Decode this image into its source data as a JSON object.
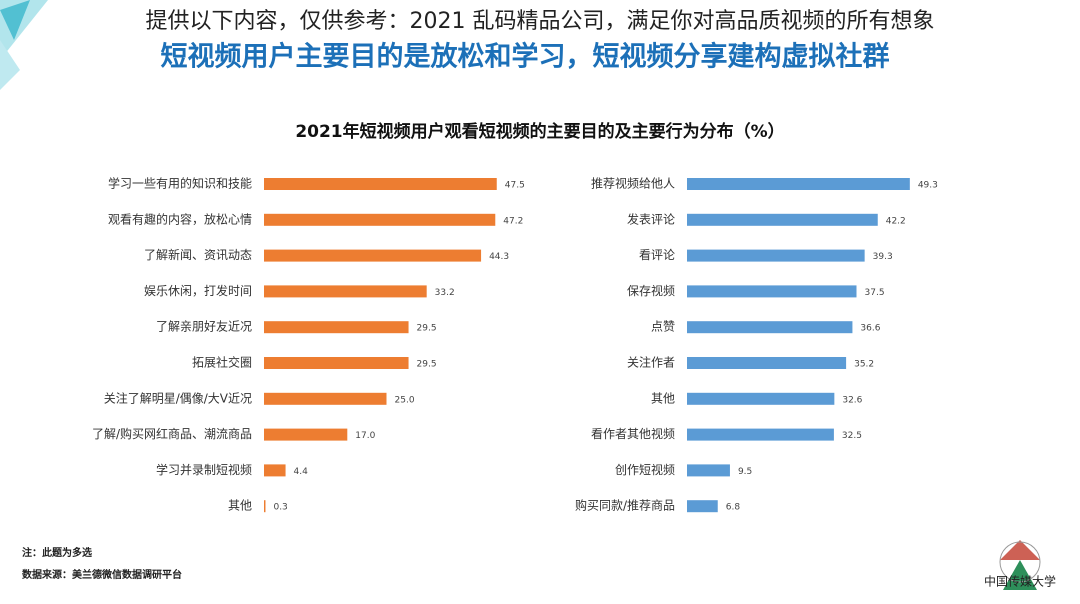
{
  "header": {
    "overlay": "提供以下内容，仅供参考：2021 乱码精品公司，满足你对高品质视频的所有想象",
    "headline": "短视频用户主要目的是放松和学习，短视频分享建构虚拟社群"
  },
  "figure_title": "2021年短视频用户观看短视频的主要目的及主要行为分布（%）",
  "chart_data": [
    {
      "type": "bar",
      "orientation": "horizontal",
      "color": "#ed7d31",
      "categories": [
        "学习一些有用的知识和技能",
        "观看有趣的内容，放松心情",
        "了解新闻、资讯动态",
        "娱乐休闲，打发时间",
        "了解亲朋好友近况",
        "拓展社交圈",
        "关注了解明星/偶像/大V近况",
        "了解/购买网红商品、潮流商品",
        "学习并录制短视频",
        "其他"
      ],
      "values": [
        47.5,
        47.2,
        44.3,
        33.2,
        29.5,
        29.5,
        25,
        17,
        4.4,
        0.3
      ],
      "value_labels": [
        "47.5",
        "47.2",
        "44.3",
        "33.2",
        "29.5",
        "29.5",
        "25.0",
        "17.0",
        "4.4",
        "0.3"
      ]
    },
    {
      "type": "bar",
      "orientation": "horizontal",
      "color": "#5b9bd5",
      "categories": [
        "推荐视频给他人",
        "发表评论",
        "看评论",
        "保存视频",
        "点赞",
        "关注作者",
        "其他",
        "看作者其他视频",
        "创作短视频",
        "购买同款/推荐商品"
      ],
      "values": [
        49.3,
        42.2,
        39.3,
        37.5,
        36.6,
        35.2,
        32.6,
        32.5,
        9.5,
        6.8
      ]
    }
  ],
  "notes": [
    "注：此题为多选",
    "数据来源：美兰德微信数据调研平台"
  ],
  "logo_text": "中国传媒大学"
}
